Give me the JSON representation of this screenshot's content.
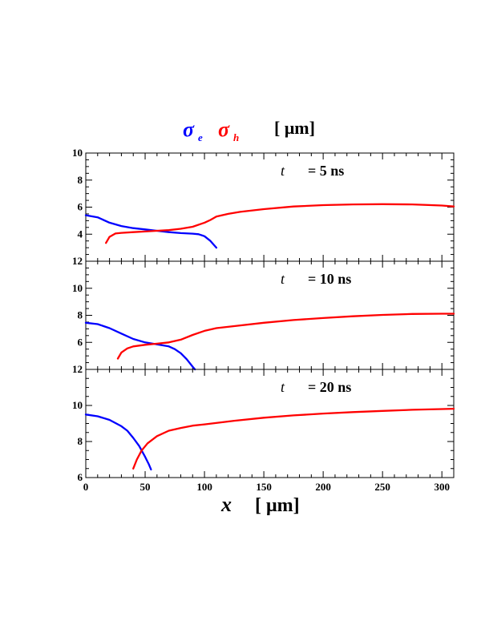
{
  "legend": {
    "electron_symbol": "σ",
    "electron_sub": "e",
    "hole_symbol": "σ",
    "hole_sub": "h",
    "unit": "[ μm]",
    "colors": {
      "electron": "#0000ff",
      "hole": "#ff0000"
    }
  },
  "xaxis": {
    "var": "x",
    "unit": "[ μm]"
  },
  "chart_data": [
    {
      "type": "line",
      "annotation": {
        "var": "t",
        "text": "= 5 ns"
      },
      "xlim": [
        0,
        310
      ],
      "ylim": [
        2,
        10
      ],
      "yticks": [
        "4",
        "6",
        "8",
        "10"
      ],
      "ytick_values": [
        4,
        6,
        8,
        10
      ],
      "series": [
        {
          "color": "#0000ff",
          "x": [
            0,
            10,
            20,
            30,
            40,
            50,
            60,
            70,
            80,
            90,
            95,
            100,
            105,
            110
          ],
          "y": [
            5.4,
            5.25,
            4.85,
            4.6,
            4.45,
            4.35,
            4.25,
            4.15,
            4.08,
            4.04,
            4.0,
            3.85,
            3.5,
            3.0
          ]
        },
        {
          "color": "#ff0000",
          "x": [
            17,
            20,
            25,
            30,
            40,
            50,
            60,
            70,
            80,
            90,
            100,
            105,
            110,
            120,
            130,
            150,
            175,
            200,
            225,
            250,
            275,
            300,
            310
          ],
          "y": [
            3.35,
            3.8,
            4.05,
            4.1,
            4.15,
            4.2,
            4.25,
            4.3,
            4.4,
            4.55,
            4.85,
            5.05,
            5.3,
            5.5,
            5.65,
            5.85,
            6.05,
            6.15,
            6.2,
            6.22,
            6.2,
            6.12,
            6.05
          ]
        }
      ]
    },
    {
      "type": "line",
      "annotation": {
        "var": "t",
        "text": "= 10 ns"
      },
      "xlim": [
        0,
        310
      ],
      "ylim": [
        4,
        12
      ],
      "yticks": [
        "6",
        "8",
        "10",
        "12"
      ],
      "ytick_values": [
        6,
        8,
        10,
        12
      ],
      "series": [
        {
          "color": "#0000ff",
          "x": [
            0,
            10,
            20,
            30,
            40,
            50,
            60,
            70,
            75,
            80,
            85,
            90,
            92
          ],
          "y": [
            7.45,
            7.35,
            7.05,
            6.65,
            6.25,
            6.0,
            5.85,
            5.7,
            5.5,
            5.2,
            4.75,
            4.2,
            4.0
          ]
        },
        {
          "color": "#ff0000",
          "x": [
            27,
            30,
            35,
            40,
            50,
            60,
            70,
            80,
            90,
            100,
            110,
            125,
            150,
            175,
            200,
            225,
            250,
            275,
            300,
            310
          ],
          "y": [
            4.8,
            5.25,
            5.55,
            5.7,
            5.82,
            5.9,
            6.0,
            6.2,
            6.55,
            6.85,
            7.05,
            7.2,
            7.45,
            7.65,
            7.8,
            7.93,
            8.03,
            8.1,
            8.12,
            8.12
          ]
        }
      ]
    },
    {
      "type": "line",
      "annotation": {
        "var": "t",
        "text": "= 20 ns"
      },
      "xlim": [
        0,
        310
      ],
      "ylim": [
        6,
        12
      ],
      "yticks": [
        "6",
        "8",
        "10",
        "12"
      ],
      "ytick_values": [
        6,
        8,
        10,
        12
      ],
      "xticks": [
        "0",
        "50",
        "100",
        "150",
        "200",
        "250",
        "300"
      ],
      "xtick_values": [
        0,
        50,
        100,
        150,
        200,
        250,
        300
      ],
      "series": [
        {
          "color": "#0000ff",
          "x": [
            0,
            10,
            20,
            30,
            35,
            40,
            45,
            50,
            53,
            55
          ],
          "y": [
            9.5,
            9.4,
            9.2,
            8.85,
            8.6,
            8.2,
            7.75,
            7.15,
            6.75,
            6.45
          ]
        },
        {
          "color": "#ff0000",
          "x": [
            40,
            43,
            47,
            52,
            60,
            70,
            80,
            90,
            100,
            125,
            150,
            175,
            200,
            225,
            250,
            275,
            300,
            310
          ],
          "y": [
            6.5,
            7.0,
            7.5,
            7.9,
            8.3,
            8.6,
            8.75,
            8.88,
            8.95,
            9.15,
            9.32,
            9.45,
            9.55,
            9.63,
            9.7,
            9.76,
            9.8,
            9.82
          ]
        }
      ]
    }
  ]
}
